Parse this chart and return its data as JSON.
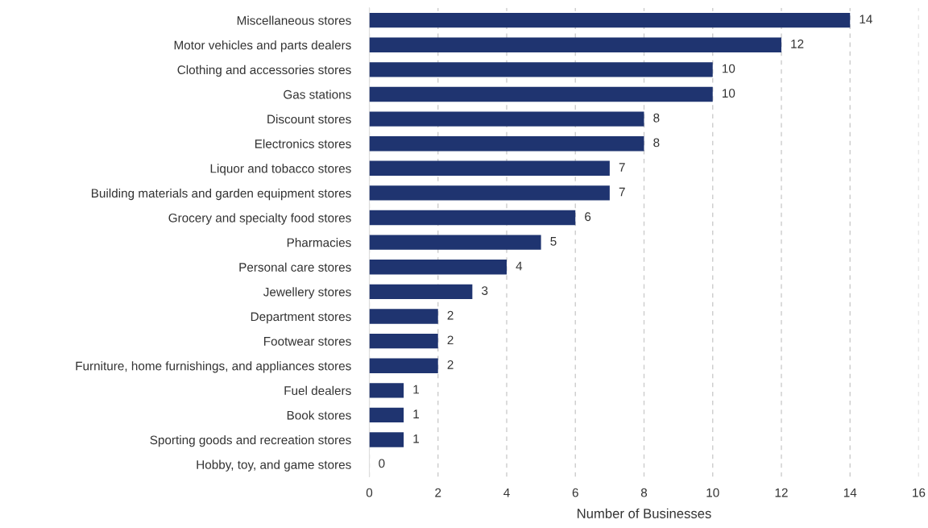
{
  "chart_data": {
    "type": "bar",
    "orientation": "horizontal",
    "xlabel": "Number of Businesses",
    "categories": [
      "Miscellaneous stores",
      "Motor vehicles and parts dealers",
      "Clothing and accessories stores",
      "Gas stations",
      "Discount stores",
      "Electronics stores",
      "Liquor and tobacco stores",
      "Building materials and garden equipment stores",
      "Grocery and specialty food stores",
      "Pharmacies",
      "Personal care stores",
      "Jewellery stores",
      "Department stores",
      "Footwear stores",
      "Furniture, home furnishings, and appliances stores",
      "Fuel dealers",
      "Book stores",
      "Sporting goods and recreation stores",
      "Hobby, toy, and game stores"
    ],
    "values": [
      14,
      12,
      10,
      10,
      8,
      8,
      7,
      7,
      6,
      5,
      4,
      3,
      2,
      2,
      2,
      1,
      1,
      1,
      0
    ],
    "color": "#1f3470",
    "xlim": [
      0,
      16
    ],
    "xticks": [
      0,
      2,
      4,
      6,
      8,
      10,
      12,
      14,
      16
    ],
    "grid": "x",
    "data_labels": true
  }
}
